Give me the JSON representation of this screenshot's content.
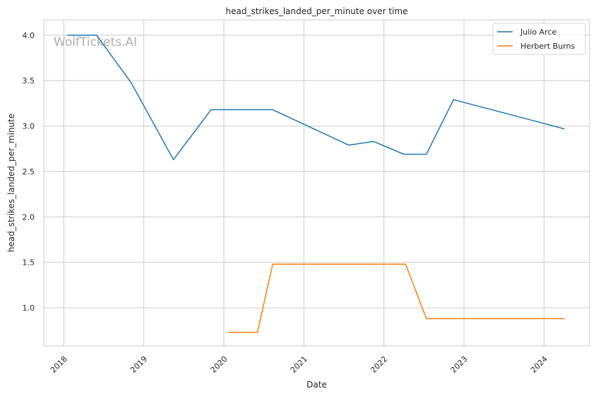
{
  "chart_data": {
    "type": "line",
    "title": "head_strikes_landed_per_minute over time",
    "xlabel": "Date",
    "ylabel": "head_strikes_landed_per_minute",
    "watermark": "WolfTickets.AI",
    "xlim": [
      2017.75,
      2024.57
    ],
    "ylim": [
      0.58,
      4.17
    ],
    "x_ticks": [
      2018,
      2019,
      2020,
      2021,
      2022,
      2023,
      2024
    ],
    "x_tick_labels": [
      "2018",
      "2019",
      "2020",
      "2021",
      "2022",
      "2023",
      "2024"
    ],
    "y_ticks": [
      1.0,
      1.5,
      2.0,
      2.5,
      3.0,
      3.5,
      4.0
    ],
    "y_tick_labels": [
      "1.0",
      "1.5",
      "2.0",
      "2.5",
      "3.0",
      "3.5",
      "4.0"
    ],
    "grid": true,
    "legend_position": "top-right",
    "series": [
      {
        "name": "Julio Arce",
        "color": "#1f77b4",
        "x": [
          2018.05,
          2018.41,
          2018.84,
          2019.37,
          2019.84,
          2020.61,
          2021.56,
          2021.87,
          2022.25,
          2022.53,
          2022.87,
          2024.25
        ],
        "y": [
          4.0,
          4.0,
          3.48,
          2.63,
          3.18,
          3.18,
          2.79,
          2.83,
          2.69,
          2.69,
          3.29,
          2.97
        ]
      },
      {
        "name": "Herbert Burns",
        "color": "#ff7f0e",
        "x": [
          2020.06,
          2020.42,
          2020.61,
          2022.27,
          2022.53,
          2024.25
        ],
        "y": [
          0.73,
          0.73,
          1.48,
          1.48,
          0.88,
          0.88
        ]
      }
    ]
  }
}
